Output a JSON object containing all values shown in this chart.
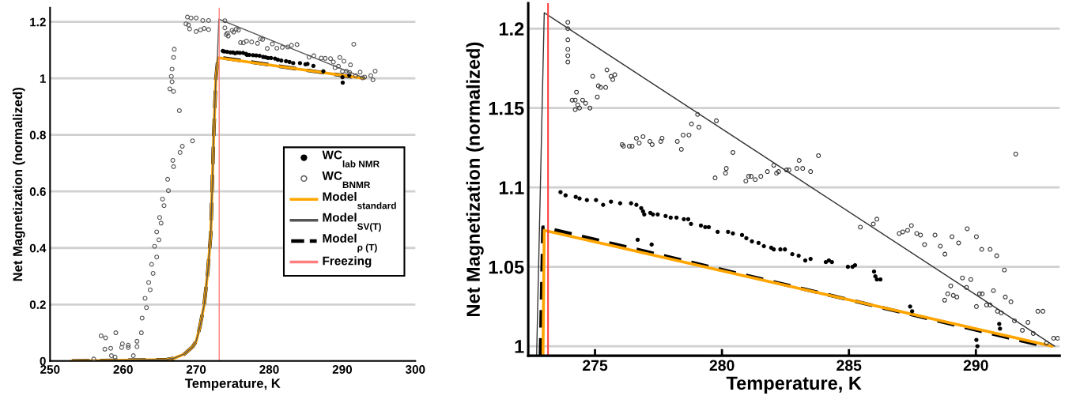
{
  "chart_data": [
    {
      "type": "scatter",
      "xlabel": "Temperature, K",
      "ylabel": "Net Magnetization (normalized)",
      "xlim": [
        250,
        300
      ],
      "ylim": [
        0,
        1.25
      ],
      "xticks": [
        250,
        260,
        270,
        280,
        290,
        300
      ],
      "yticks": [
        0,
        0.2,
        0.4,
        0.6,
        0.8,
        1,
        1.2
      ],
      "grid": "y",
      "legend": "right",
      "series": [
        {
          "name": "WC$_{lab NMR}$",
          "marker": "circle",
          "color": "#000000",
          "x": [
            273.64,
            273.84,
            274.24,
            274.68,
            275.04,
            275.32,
            275.63,
            275.99,
            276.42,
            276.82,
            276.94,
            277.28,
            277.78,
            278.21,
            278.67,
            279.17,
            279.48,
            279.83,
            280.24,
            280.79,
            281.18,
            281.65,
            282.3,
            282.77,
            283.28,
            284.21,
            284.96,
            285.24,
            286.04,
            287.41,
            290.02,
            290.06,
            290.95
          ],
          "values": [
            1.097,
            1.095,
            1.094,
            1.092,
            1.092,
            1.089,
            1.091,
            1.09,
            1.09,
            1.087,
            1.083,
            1.083,
            1.082,
            1.081,
            1.08,
            1.076,
            1.075,
            1.072,
            1.072,
            1.07,
            1.066,
            1.063,
            1.061,
            1.058,
            1.054,
            1.054,
            1.05,
            1.051,
            1.044,
            1.025,
            1.004,
            0.985,
            1.011
          ]
        },
        {
          "name": "WC$_{BNMR}$",
          "marker": "circle",
          "color": "#555555",
          "x": [
            255.98,
            256.99,
            257.6,
            257.5,
            258.3,
            258.4,
            258.9,
            259.0,
            259.8,
            259.9,
            260.7,
            260.7,
            261.4,
            261.9,
            261.9,
            262.5,
            262.6,
            263.0,
            263.2,
            263.7,
            263.5,
            264.1,
            263.9,
            264.3,
            264.6,
            264.9,
            264.6,
            265.2,
            265.0,
            265.6,
            265.4,
            266.2,
            266.1,
            266.9,
            266.8,
            266.4,
            266.9,
            266.7,
            266.6,
            266.7,
            266.9,
            267.0,
            267.7,
            267.8,
            268.1,
            269.5,
            268.8,
            269.3,
            270.0,
            268.6,
            268.95,
            269.1,
            270.0,
            270.6,
            271.1,
            271.7,
            270.9,
            271.7,
            273.93,
            273.93,
            274.1,
            274.27,
            274.39,
            274.91,
            275.13,
            275.47,
            275.78,
            276.07,
            276.46,
            276.89,
            277.59,
            278.4,
            278.8,
            279.09,
            279.73,
            280.43,
            281.05,
            281.79,
            282.54,
            283.04,
            283.8,
            285.45,
            286.1,
            287.12,
            287.67,
            288.39,
            288.78,
            289.66,
            290.23,
            291.12,
            289.01,
            289.47,
            290.02,
            290.56,
            291.0,
            291.57,
            291.83,
            292.44,
            292.78,
            293.06,
            293.9,
            294.2,
            294.5
          ],
          "values": [
            0.007,
            0.089,
            0.082,
            0.042,
            0.045,
            0.019,
            0.014,
            0.1,
            0.048,
            0.061,
            0.056,
            0.048,
            0.019,
            0.07,
            0.051,
            0.1,
            0.152,
            0.222,
            0.189,
            0.252,
            0.278,
            0.31,
            0.342,
            0.406,
            0.368,
            0.429,
            0.457,
            0.488,
            0.508,
            0.55,
            0.573,
            0.603,
            0.643,
            0.688,
            0.71,
            0.963,
            0.954,
            0.988,
            1.007,
            1.033,
            1.074,
            1.103,
            0.886,
            0.738,
            0.76,
            0.779,
            1.217,
            1.214,
            1.214,
            1.193,
            1.189,
            1.175,
            1.166,
            1.172,
            1.177,
            1.173,
            1.205,
            1.205,
            1.204,
            1.179,
            1.155,
            1.16,
            1.15,
            1.17,
            1.164,
            1.174,
            1.171,
            1.127,
            1.126,
            1.132,
            1.129,
            1.124,
            1.14,
            1.138,
            1.106,
            1.122,
            1.107,
            1.11,
            1.111,
            1.117,
            1.12,
            1.075,
            1.08,
            1.072,
            1.071,
            1.07,
            1.058,
            1.074,
            1.061,
            1.048,
            1.038,
            1.043,
            1.025,
            1.026,
            1.021,
            1.121,
            1.01,
            1.022,
            1.002,
            1.005,
            1.01,
            0.995,
            1.026
          ]
        },
        {
          "name": "Model$_{standard}$",
          "type": "line",
          "line_style": "solid",
          "color": "#ffa500",
          "x": [
            253,
            266,
            267,
            268.4,
            269.5,
            270,
            270.5,
            271.1,
            271.6,
            272,
            272.4,
            272.7,
            273.0,
            293.0
          ],
          "values": [
            0,
            0.005,
            0.01,
            0.025,
            0.05,
            0.07,
            0.12,
            0.2,
            0.32,
            0.45,
            0.8,
            1.0,
            1.073,
            1.0
          ]
        },
        {
          "name": "Model$_{SV(T)}$",
          "type": "line",
          "line_style": "solid",
          "color": "#555555",
          "x": [
            253,
            266,
            267,
            268.4,
            269.5,
            270,
            270.5,
            271.1,
            271.6,
            272,
            272.4,
            272.7,
            272.9,
            273.1,
            293.1
          ],
          "values": [
            0,
            0.005,
            0.01,
            0.025,
            0.05,
            0.07,
            0.12,
            0.2,
            0.32,
            0.45,
            0.8,
            1.0,
            1.07,
            1.21,
            1.0
          ]
        },
        {
          "name": "Model$_{ρ (T)}$",
          "type": "line",
          "line_style": "dashed",
          "color": "#000000",
          "x": [
            253,
            266,
            267,
            268.4,
            269.5,
            270,
            270.5,
            271.1,
            271.6,
            272,
            272.4,
            272.7,
            273.0,
            292.7
          ],
          "values": [
            0,
            0.005,
            0.01,
            0.025,
            0.05,
            0.07,
            0.12,
            0.2,
            0.32,
            0.45,
            0.8,
            1.0,
            1.075,
            1.0
          ]
        },
        {
          "name": "Freezing",
          "type": "line",
          "line_style": "solid",
          "color": "#ff7f7f",
          "x": [
            273.15,
            273.15
          ],
          "values": [
            0,
            1.25
          ]
        }
      ]
    },
    {
      "type": "scatter",
      "xlabel": "Temperature, K",
      "ylabel": "Net Magnetization (normalized)",
      "xlim": [
        272.37,
        293.3
      ],
      "ylim": [
        0.994,
        1.216
      ],
      "xticks": [
        275,
        280,
        285,
        290
      ],
      "yticks": [
        1,
        1.05,
        1.1,
        1.15,
        1.2
      ],
      "grid": "y",
      "series": [
        {
          "marker": "circle",
          "color": "#000000",
          "x": [
            273.64,
            273.84,
            274.24,
            274.39,
            274.68,
            275.04,
            275.32,
            275.63,
            275.99,
            276.42,
            276.63,
            276.82,
            276.89,
            276.94,
            277.18,
            277.28,
            277.47,
            277.78,
            277.98,
            278.21,
            278.5,
            278.67,
            278.78,
            279.17,
            279.34,
            279.48,
            279.83,
            280.24,
            280.43,
            280.79,
            280.96,
            281.18,
            276.68,
            277.23,
            281.44,
            281.65,
            281.94,
            282.04,
            282.3,
            282.48,
            282.77,
            283.02,
            283.28,
            283.49,
            284.09,
            284.21,
            284.33,
            284.96,
            285.14,
            285.24,
            285.99,
            286.04,
            286.1,
            286.24,
            287.41,
            287.49,
            290.92,
            290.95,
            290.02,
            290.06
          ],
          "values": [
            1.097,
            1.095,
            1.094,
            1.093,
            1.092,
            1.092,
            1.089,
            1.091,
            1.09,
            1.09,
            1.089,
            1.087,
            1.085,
            1.083,
            1.084,
            1.083,
            1.083,
            1.082,
            1.081,
            1.081,
            1.08,
            1.08,
            1.077,
            1.076,
            1.075,
            1.075,
            1.072,
            1.072,
            1.071,
            1.07,
            1.068,
            1.066,
            1.067,
            1.064,
            1.065,
            1.063,
            1.062,
            1.061,
            1.061,
            1.061,
            1.058,
            1.057,
            1.054,
            1.055,
            1.053,
            1.054,
            1.053,
            1.05,
            1.05,
            1.051,
            1.047,
            1.044,
            1.042,
            1.042,
            1.025,
            1.022,
            1.014,
            1.011,
            1.004,
            1.0
          ]
        },
        {
          "marker": "circle",
          "color": "#333333",
          "x": [
            273.93,
            273.93,
            273.93,
            273.93,
            273.93,
            273.93,
            274.1,
            274.22,
            274.27,
            274.22,
            274.32,
            274.39,
            274.51,
            274.63,
            274.8,
            274.91,
            275.09,
            275.13,
            275.22,
            275.42,
            275.47,
            275.63,
            275.7,
            275.78,
            276.07,
            276.12,
            276.35,
            276.46,
            276.63,
            276.74,
            276.89,
            277.16,
            277.25,
            277.59,
            277.64,
            278.24,
            278.4,
            278.47,
            278.7,
            278.8,
            279.04,
            279.09,
            279.78,
            279.73,
            280.14,
            280.17,
            280.43,
            280.94,
            281.05,
            281.15,
            281.31,
            281.53,
            281.79,
            282.04,
            282.15,
            282.23,
            282.54,
            282.64,
            282.95,
            283.04,
            283.18,
            283.49,
            283.8,
            285.45,
            285.96,
            286.1,
            286.98,
            287.12,
            287.31,
            287.46,
            287.67,
            287.82,
            287.98,
            288.39,
            288.6,
            288.78,
            289.06,
            289.32,
            289.66,
            290.02,
            290.23,
            290.56,
            290.82,
            291.12,
            288.77,
            288.89,
            289.01,
            289.11,
            289.25,
            289.47,
            289.63,
            289.8,
            290.02,
            290.14,
            290.25,
            290.42,
            290.56,
            290.69,
            290.85,
            291.0,
            291.16,
            291.38,
            291.52,
            291.57,
            291.83,
            292.05,
            292.26,
            292.44,
            292.64,
            292.78,
            293.06,
            293.22
          ],
          "values": [
            1.204,
            1.2,
            1.193,
            1.187,
            1.183,
            1.179,
            1.155,
            1.155,
            1.16,
            1.149,
            1.152,
            1.15,
            1.155,
            1.153,
            1.15,
            1.17,
            1.157,
            1.164,
            1.163,
            1.163,
            1.174,
            1.17,
            1.168,
            1.171,
            1.127,
            1.126,
            1.126,
            1.126,
            1.131,
            1.128,
            1.132,
            1.129,
            1.127,
            1.129,
            1.131,
            1.129,
            1.124,
            1.133,
            1.133,
            1.14,
            1.146,
            1.138,
            1.142,
            1.106,
            1.109,
            1.112,
            1.122,
            1.104,
            1.107,
            1.107,
            1.105,
            1.107,
            1.11,
            1.114,
            1.109,
            1.11,
            1.111,
            1.111,
            1.112,
            1.117,
            1.112,
            1.11,
            1.12,
            1.075,
            1.077,
            1.08,
            1.071,
            1.072,
            1.073,
            1.076,
            1.071,
            1.07,
            1.064,
            1.07,
            1.063,
            1.058,
            1.069,
            1.065,
            1.074,
            1.069,
            1.061,
            1.061,
            1.057,
            1.048,
            1.029,
            1.033,
            1.038,
            1.032,
            1.031,
            1.043,
            1.037,
            1.042,
            1.025,
            1.033,
            1.033,
            1.026,
            1.026,
            1.035,
            1.022,
            1.021,
            1.031,
            1.028,
            1.016,
            1.121,
            1.01,
            1.015,
            1.008,
            1.022,
            1.022,
            1.002,
            1.005,
            1.005
          ]
        },
        {
          "type": "line",
          "line_style": "solid",
          "color": "#ffa500",
          "x": [
            272.95,
            273.0,
            293.0
          ],
          "values": [
            0.994,
            1.073,
            1.0
          ]
        },
        {
          "type": "line",
          "line_style": "solid",
          "color": "#333333",
          "x": [
            272.7,
            273.0,
            293.1
          ],
          "values": [
            0.994,
            1.21,
            1.0
          ]
        },
        {
          "type": "line",
          "line_style": "dashed",
          "color": "#000000",
          "x": [
            272.85,
            272.95,
            292.7
          ],
          "values": [
            0.994,
            1.075,
            1.0
          ]
        }
      ],
      "ref_lines": [
        {
          "axis": "x",
          "value": 273.15,
          "color": "#ff4040",
          "line_style": "solid"
        }
      ]
    }
  ]
}
